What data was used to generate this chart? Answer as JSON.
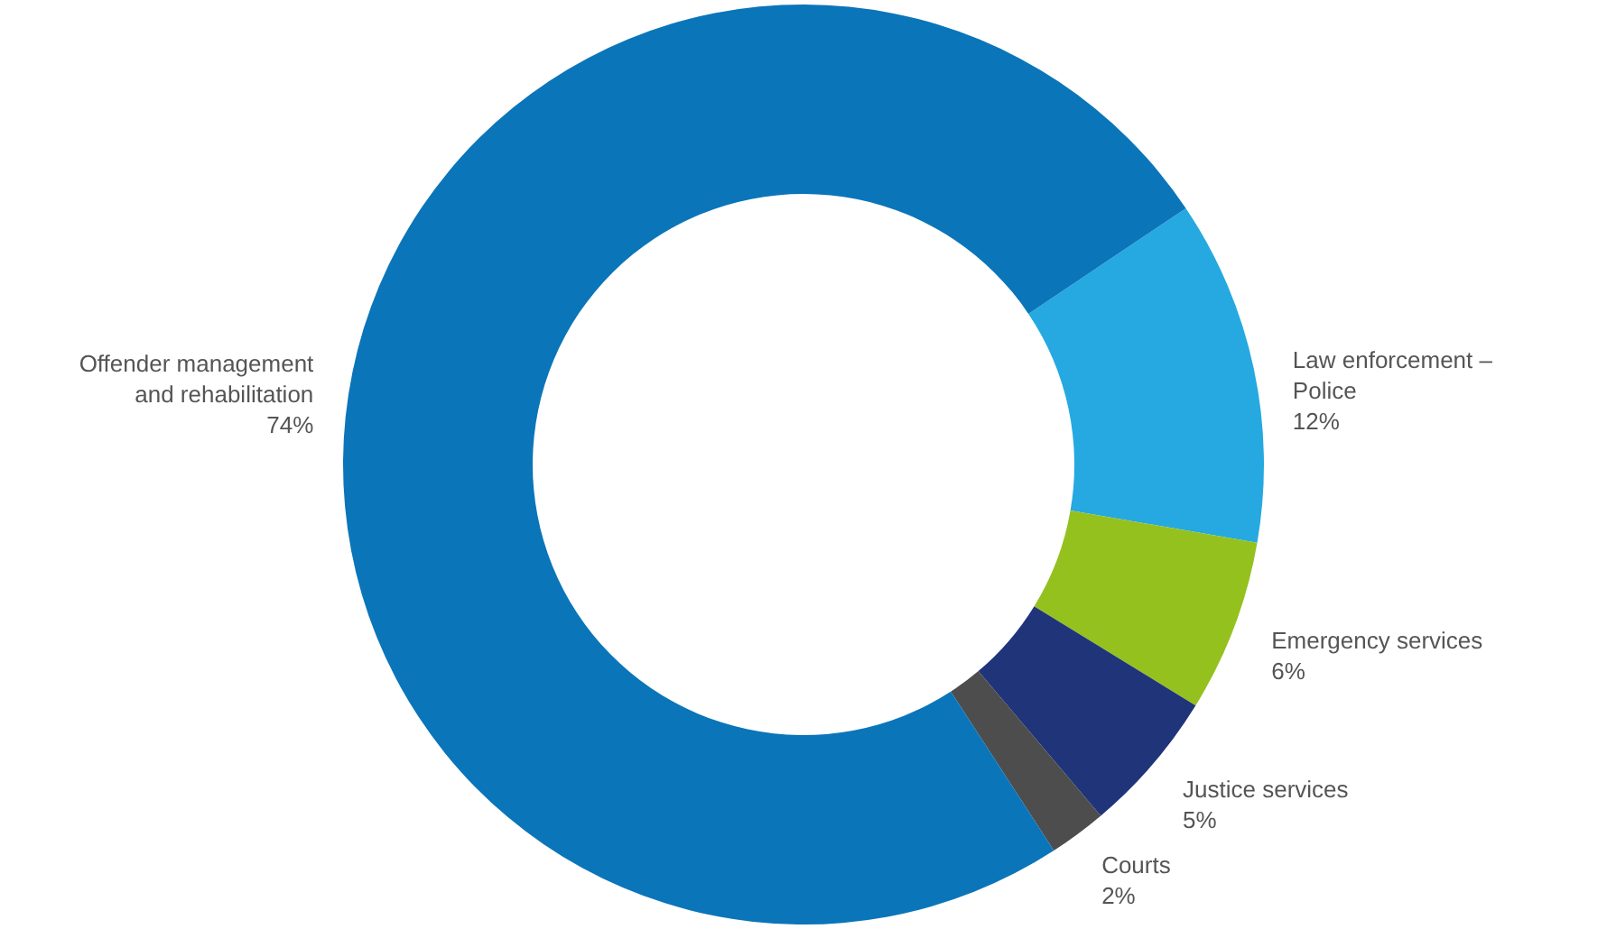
{
  "chart_data": {
    "type": "donut",
    "categories": [
      "Law enforcement –\nPolice",
      "Emergency services",
      "Justice services",
      "Courts",
      "Offender management\nand rehabilitation"
    ],
    "values": [
      12,
      6,
      5,
      2,
      74
    ],
    "value_labels": [
      "12%",
      "6%",
      "5%",
      "2%",
      "74%"
    ],
    "colors": [
      "#25a9e0",
      "#95c11f",
      "#1f3479",
      "#4d4d4d",
      "#0a75b9"
    ],
    "legend": false
  }
}
